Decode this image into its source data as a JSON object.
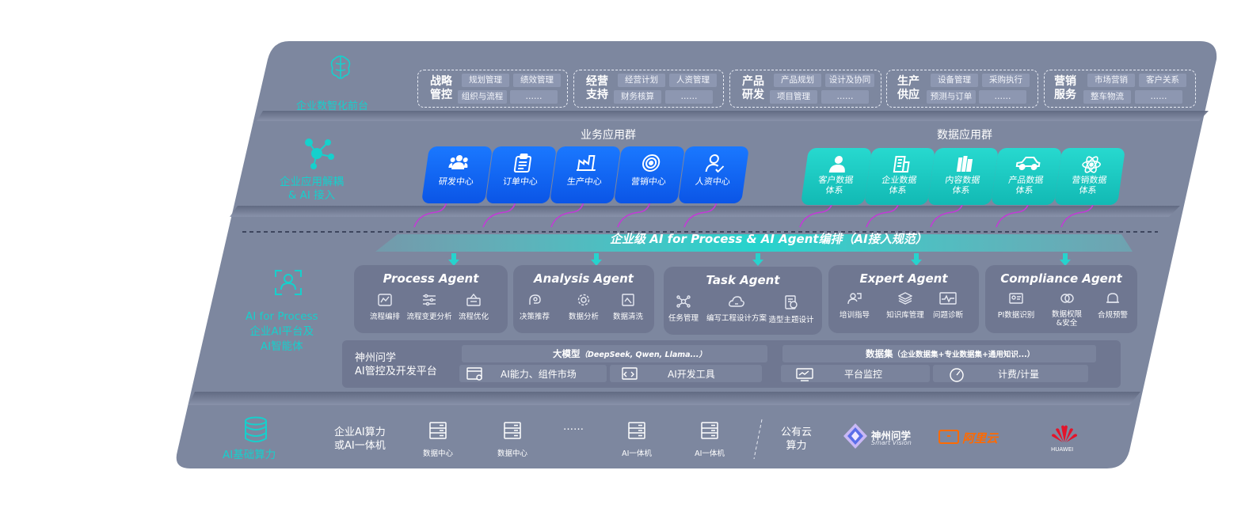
{
  "frontend": {
    "label": "企业数智化前台",
    "groups": [
      {
        "title_l1": "战略",
        "title_l2": "管控",
        "items": [
          "规划管理",
          "绩效管理",
          "组织与流程",
          "……"
        ]
      },
      {
        "title_l1": "经营",
        "title_l2": "支持",
        "items": [
          "经营计划",
          "人资管理",
          "财务核算",
          "……"
        ]
      },
      {
        "title_l1": "产品",
        "title_l2": "研发",
        "items": [
          "产品规划",
          "设计及协同",
          "项目管理",
          "……"
        ]
      },
      {
        "title_l1": "生产",
        "title_l2": "供应",
        "items": [
          "设备管理",
          "采购执行",
          "预测与订单",
          "……"
        ]
      },
      {
        "title_l1": "营销",
        "title_l2": "服务",
        "items": [
          "市场营销",
          "客户关系",
          "整车物流",
          "……"
        ]
      }
    ]
  },
  "apps": {
    "label_l1": "企业应用解耦",
    "label_l2": "& AI 接入",
    "biz_title": "业务应用群",
    "data_title": "数据应用群",
    "biz_cards": [
      {
        "label": "研发中心",
        "icon": "team-icon"
      },
      {
        "label": "订单中心",
        "icon": "clipboard-icon"
      },
      {
        "label": "生产中心",
        "icon": "factory-icon"
      },
      {
        "label": "营销中心",
        "icon": "target-icon"
      },
      {
        "label": "人资中心",
        "icon": "user-check-icon"
      }
    ],
    "data_cards": [
      {
        "label_l1": "客户数据",
        "label_l2": "体系",
        "icon": "person-icon"
      },
      {
        "label_l1": "企业数据",
        "label_l2": "体系",
        "icon": "building-icon"
      },
      {
        "label_l1": "内容数据",
        "label_l2": "体系",
        "icon": "books-icon"
      },
      {
        "label_l1": "产品数据",
        "label_l2": "体系",
        "icon": "car-icon"
      },
      {
        "label_l1": "营销数据",
        "label_l2": "体系",
        "icon": "atom-icon"
      }
    ]
  },
  "ai_layer": {
    "banner": "企业级 AI for Process & AI Agent编排（AI接入规范）",
    "label_l1": "AI for Process",
    "label_l2": "企业AI平台及",
    "label_l3": "AI智能体",
    "agents": [
      {
        "title": "Process Agent",
        "items": [
          "流程编排",
          "流程变更分析",
          "流程优化"
        ]
      },
      {
        "title": "Analysis Agent",
        "items": [
          "决策推荐",
          "数据分析",
          "数据清洗"
        ]
      },
      {
        "title": "Task Agent",
        "items": [
          "任务管理",
          "编写工程设计方案",
          "造型主题设计"
        ]
      },
      {
        "title": "Expert Agent",
        "items": [
          "培训指导",
          "知识库管理",
          "问题诊断"
        ]
      },
      {
        "title": "Compliance Agent",
        "items": [
          "PI数据识别",
          "数据权限&安全",
          "合规预警"
        ]
      }
    ]
  },
  "platform": {
    "name_l1": "神州问学",
    "name_l2": "AI管控及开发平台",
    "model_title": "大模型",
    "model_sub": "（DeepSeek, Qwen, Llama...）",
    "dataset_title": "数据集",
    "dataset_sub": "（企业数据集+专业数据集+通用知识...）",
    "tools": [
      "AI能力、组件市场",
      "AI开发工具",
      "平台监控",
      "计费/计量"
    ]
  },
  "infra": {
    "label": "AI基础算力",
    "private_l1": "企业AI算力",
    "private_l2": "或AI一体机",
    "nodes": [
      "数据中心",
      "数据中心",
      "AI一体机",
      "AI一体机"
    ],
    "ellipsis": "……",
    "public_l1": "公有云",
    "public_l2": "算力",
    "vendor1": "神州问学",
    "vendor1_sub": "Smart Vision",
    "vendor2": "阿里云",
    "vendor3": "HUAWEI"
  },
  "colors": {
    "accent_cyan": "#16d0cc",
    "card_blue": "#0b55e6",
    "panel": "#7d879f"
  }
}
